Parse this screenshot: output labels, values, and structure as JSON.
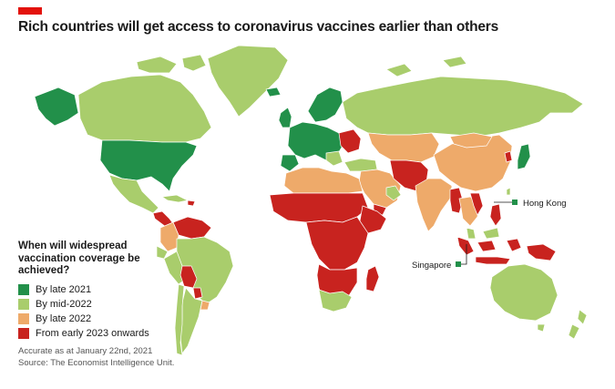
{
  "title": "Rich countries will get access to coronavirus vaccines earlier than others",
  "legend": {
    "title": "When will widespread vaccination coverage be achieved?",
    "items": [
      {
        "label": "By late 2021",
        "color": "#22904a"
      },
      {
        "label": "By mid-2022",
        "color": "#a9cd6c"
      },
      {
        "label": "By late 2022",
        "color": "#eeaa6a"
      },
      {
        "label": "From early 2023 onwards",
        "color": "#c8231f"
      }
    ]
  },
  "callouts": {
    "hong_kong": "Hong Kong",
    "singapore": "Singapore"
  },
  "notes": {
    "accuracy": "Accurate as at January 22nd, 2021",
    "source": "Source: The Economist Intelligence Unit."
  },
  "colors": {
    "brand_red": "#e3120b",
    "ocean": "#ffffff",
    "border": "#ffffff"
  }
}
